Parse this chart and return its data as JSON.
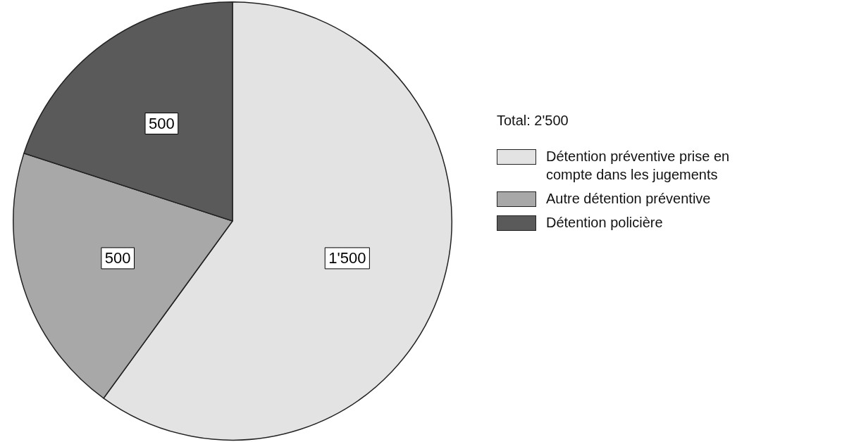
{
  "chart_data": {
    "type": "pie",
    "categories": [
      "Détention préventive prise en compte dans les jugements",
      "Autre détention préventive",
      "Détention policière"
    ],
    "values": [
      1500,
      500,
      500
    ],
    "colors": [
      "#e3e3e3",
      "#a8a8a8",
      "#5a5a5a"
    ],
    "value_labels": [
      "1'500",
      "500",
      "500"
    ],
    "annotations": [
      "Total: 2'500"
    ],
    "legend": "right"
  }
}
